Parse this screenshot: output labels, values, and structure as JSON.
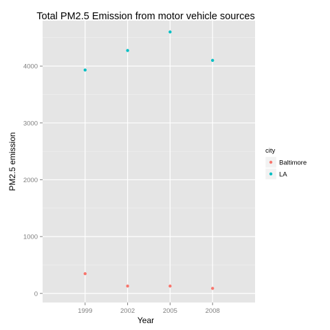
{
  "chart_data": {
    "type": "scatter",
    "title": "Total PM2.5 Emission from motor vehicle sources",
    "xlabel": "Year",
    "ylabel": "PM2.5 emission",
    "categories": [
      "1999",
      "2002",
      "2005",
      "2008"
    ],
    "yticks": [
      0,
      1000,
      2000,
      3000,
      4000
    ],
    "ylim": [
      -160,
      4800
    ],
    "grid": true,
    "legend": {
      "title": "city",
      "position": "right"
    },
    "series": [
      {
        "name": "Baltimore",
        "color": "#F8766D",
        "values": [
          347,
          130,
          129,
          89
        ]
      },
      {
        "name": "LA",
        "color": "#00BFC4",
        "values": [
          3931,
          4274,
          4601,
          4101
        ]
      }
    ],
    "colors": {
      "panel_background": "#E5E5E5",
      "grid_major": "#FFFFFF",
      "grid_minor": "#F2F2F2"
    }
  }
}
